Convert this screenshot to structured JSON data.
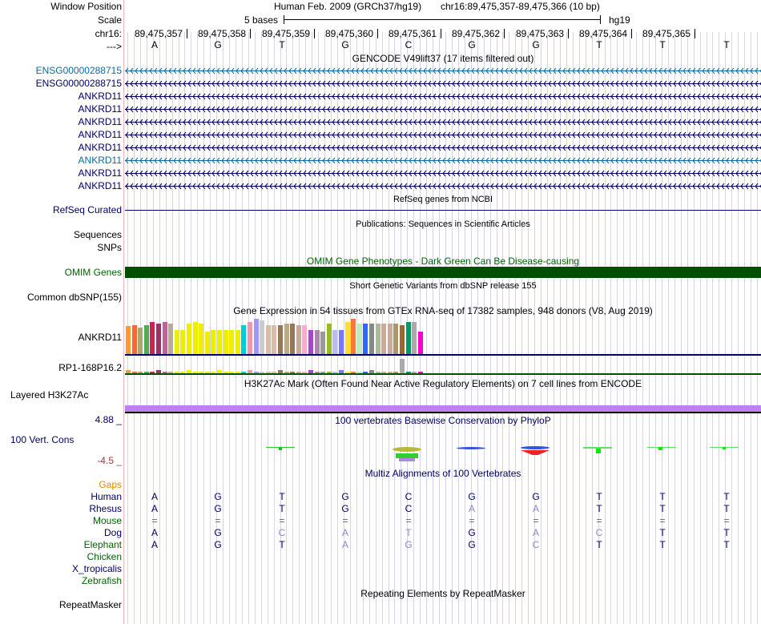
{
  "colors": {
    "blue": "#0000aa",
    "navy": "#000066",
    "teal": "#0e6aa2",
    "green": "#006400",
    "orange": "#e38b00",
    "mauve": "#9b3a3a",
    "grid": "#d4d4ee",
    "omim": "#004e00",
    "h3k": "#c080f0"
  },
  "labels": {
    "window_position": "Window Position",
    "scale": "Scale",
    "chr": "chr16:",
    "arrows": "--->",
    "refseq": "RefSeq Curated",
    "sequences": "Sequences",
    "snps": "SNPs",
    "omim": "OMIM Genes",
    "dbsnp": "Common dbSNP(155)",
    "ankrd11": "ANKRD11",
    "rp1": "RP1-168P16.2",
    "h3k27ac": "Layered H3K27Ac",
    "cons": "100 Vert. Cons",
    "cons_max": "4.88 _",
    "cons_min": "-4.5 _",
    "gaps": "Gaps",
    "repeatmasker": "RepeatMasker"
  },
  "header": {
    "assembly": "Human Feb. 2009 (GRCh37/hg19)",
    "position": "chr16:89,475,357-89,475,366 (10 bp)",
    "scale_text": "5 bases",
    "scale_db": "hg19"
  },
  "bases": {
    "coords": [
      "89,475,357",
      "89,475,358",
      "89,475,359",
      "89,475,360",
      "89,475,361",
      "89,475,362",
      "89,475,363",
      "89,475,364",
      "89,475,365"
    ],
    "seq": [
      "A",
      "G",
      "T",
      "G",
      "C",
      "G",
      "G",
      "T",
      "T",
      "T"
    ]
  },
  "tracks": {
    "gencode": "GENCODE V49lift37 (17 items filtered out)",
    "refseq": "RefSeq genes from NCBI",
    "pubs": "Publications: Sequences in Scientific Articles",
    "omim": "OMIM Gene Phenotypes - Dark Green Can Be Disease-causing",
    "dbsnp": "Short Genetic Variants from dbSNP release 155",
    "gtex": "Gene Expression in 54 tissues from GTEx RNA-seq of 17382 samples, 948 donors (V8, Aug 2019)",
    "h3k27ac": "H3K27Ac Mark (Often Found Near Active Regulatory Elements) on 7 cell lines from ENCODE",
    "phylop": "100 vertebrates Basewise Conservation by PhyloP",
    "multiz": "Multiz Alignments of 100 Vertebrates",
    "rmsk": "Repeating Elements by RepeatMasker"
  },
  "genes": [
    {
      "name": "ENSG00000288715",
      "color": "#0e6aa2"
    },
    {
      "name": "ENSG00000288715",
      "color": "#000066"
    },
    {
      "name": "ANKRD11",
      "color": "#000066"
    },
    {
      "name": "ANKRD11",
      "color": "#000066"
    },
    {
      "name": "ANKRD11",
      "color": "#000066"
    },
    {
      "name": "ANKRD11",
      "color": "#000066"
    },
    {
      "name": "ANKRD11",
      "color": "#000066"
    },
    {
      "name": "ANKRD11",
      "color": "#0e6aa2"
    },
    {
      "name": "ANKRD11",
      "color": "#000066"
    },
    {
      "name": "ANKRD11",
      "color": "#000066"
    }
  ],
  "gtex_colors": [
    "#ff9933",
    "#ff6633",
    "#aaaa66",
    "#55aa55",
    "#cc2255",
    "#993366",
    "#bb6699",
    "#bbaa99",
    "#eeee00",
    "#eeee00",
    "#eeee00",
    "#eeee00",
    "#eeee00",
    "#eeee00",
    "#eeee00",
    "#eeee00",
    "#eeee00",
    "#eeee00",
    "#eeee00",
    "#00ccdd",
    "#ee99aa",
    "#9999ff",
    "#cccccc",
    "#ddbbaa",
    "#ddbbaa",
    "#997755",
    "#bbaa88",
    "#997755",
    "#ccaa99",
    "#ffaacc",
    "#aa44cc",
    "#aa88aa",
    "#999999",
    "#99bb22",
    "#bbbbee",
    "#7777ff",
    "#ffdd33",
    "#ff7733",
    "#bbeebb",
    "#3366ff",
    "#888888",
    "#aabb99",
    "#ccaa99",
    "#ccaa99",
    "#aa9966",
    "#996633",
    "#009966",
    "#aaaaaa",
    "#ff00cc"
  ],
  "species": [
    {
      "name": "Human",
      "color": "#000066",
      "seq": [
        "A",
        "G",
        "T",
        "G",
        "C",
        "G",
        "G",
        "T",
        "T",
        "T"
      ]
    },
    {
      "name": "Rhesus",
      "color": "#000066",
      "seq": [
        "A",
        "G",
        "T",
        "G",
        "C",
        "A",
        "A",
        "T",
        "T",
        "T"
      ]
    },
    {
      "name": "Mouse",
      "color": "#006400",
      "seq": [
        "=",
        "=",
        "=",
        "=",
        "=",
        "=",
        "=",
        "=",
        "=",
        "="
      ]
    },
    {
      "name": "Dog",
      "color": "#000066",
      "seq": [
        "A",
        "G",
        "C",
        "A",
        "T",
        "G",
        "A",
        "C",
        "T",
        "T"
      ]
    },
    {
      "name": "Elephant",
      "color": "#006400",
      "seq": [
        "A",
        "G",
        "T",
        "A",
        "G",
        "G",
        "C",
        "T",
        "T",
        "T"
      ]
    },
    {
      "name": "Chicken",
      "color": "#006400",
      "seq": []
    },
    {
      "name": "X_tropicalis",
      "color": "#000066",
      "seq": []
    },
    {
      "name": "Zebrafish",
      "color": "#006400",
      "seq": []
    }
  ]
}
